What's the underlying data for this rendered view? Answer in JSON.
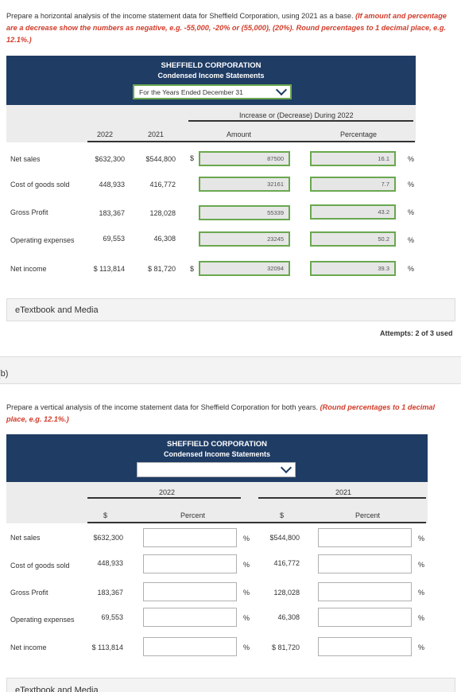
{
  "part_a": {
    "instruction_normal": "Prepare a horizontal analysis of the income statement data for Sheffield Corporation, using 2021 as a base. ",
    "instruction_red": "(If amount and percentage are a decrease show the numbers as negative, e.g. -55,000, -20% or (55,000), (20%). Round percentages to 1 decimal place, e.g. 12.1%.)",
    "company": "SHEFFIELD CORPORATION",
    "statement": "Condensed Income Statements",
    "period_select": "For the Years Ended December 31",
    "col_2022": "2022",
    "col_2021": "2021",
    "change_header": "Increase or (Decrease) During 2022",
    "amount_header": "Amount",
    "percentage_header": "Percentage",
    "rows": [
      {
        "label": "Net sales",
        "v2022": "$632,300",
        "v2021": "$544,800",
        "dollar": "$",
        "amount": "87500",
        "percent": "16.1",
        "pct_sym": "%"
      },
      {
        "label": "Cost of goods sold",
        "v2022": "448,933",
        "v2021": "416,772",
        "dollar": "",
        "amount": "32161",
        "percent": "7.7",
        "pct_sym": "%"
      },
      {
        "label": "Gross Profit",
        "v2022": "183,367",
        "v2021": "128,028",
        "dollar": "",
        "amount": "55339",
        "percent": "43.2",
        "pct_sym": "%"
      },
      {
        "label": "Operating expenses",
        "v2022": "69,553",
        "v2021": "46,308",
        "dollar": "",
        "amount": "23245",
        "percent": "50.2",
        "pct_sym": "%"
      },
      {
        "label": "Net income",
        "v2022": "$ 113,814",
        "v2021": "$ 81,720",
        "dollar": "$",
        "amount": "32094",
        "percent": "39.3",
        "pct_sym": "%"
      }
    ],
    "etextbook": "eTextbook and Media",
    "attempts": "Attempts: 2 of 3 used"
  },
  "part_b": {
    "label": "(b)",
    "instruction_normal": "Prepare a vertical analysis of the income statement data for Sheffield Corporation for both years. ",
    "instruction_red": "(Round percentages to 1 decimal place, e.g. 12.1%.)",
    "company": "SHEFFIELD CORPORATION",
    "statement": "Condensed Income Statements",
    "period_select": "",
    "col_2022": "2022",
    "col_2021": "2021",
    "dollar_header": "$",
    "percent_header": "Percent",
    "rows": [
      {
        "label": "Net sales",
        "v2022": "$632,300",
        "pct_sym": "%",
        "v2021": "$544,800",
        "pct_sym2": "%"
      },
      {
        "label": "Cost of goods sold",
        "v2022": "448,933",
        "pct_sym": "%",
        "v2021": "416,772",
        "pct_sym2": "%"
      },
      {
        "label": "Gross Profit",
        "v2022": "183,367",
        "pct_sym": "%",
        "v2021": "128,028",
        "pct_sym2": "%"
      },
      {
        "label": "Operating expenses",
        "v2022": "69,553",
        "pct_sym": "%",
        "v2021": "46,308",
        "pct_sym2": "%"
      },
      {
        "label": "Net income",
        "v2022": "$ 113,814",
        "pct_sym": "%",
        "v2021": "$ 81,720",
        "pct_sym2": "%"
      }
    ],
    "etextbook": "eTextbook and Media"
  },
  "colors": {
    "banner": "#1f3c64",
    "accent_green": "#6aa84f",
    "instruction_red": "#d23c2a"
  }
}
